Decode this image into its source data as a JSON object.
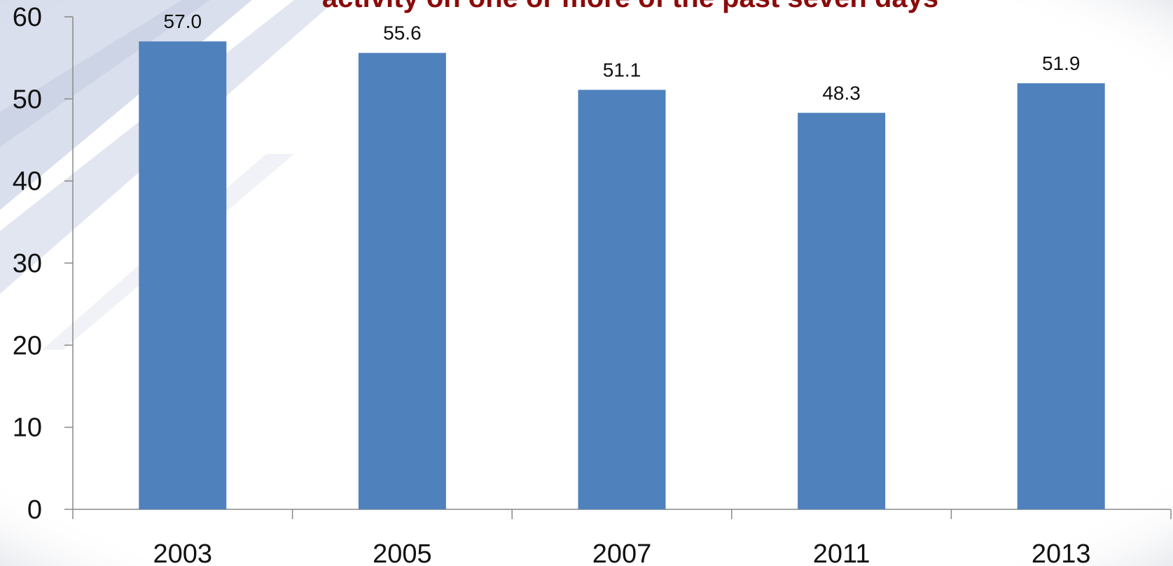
{
  "chart_data": {
    "type": "bar",
    "title": "activity on one or more of the past seven days",
    "categories": [
      "2003",
      "2005",
      "2007",
      "2011",
      "2013"
    ],
    "values": [
      57.0,
      55.6,
      51.1,
      48.3,
      51.9
    ],
    "data_labels": [
      "57.0",
      "55.6",
      "51.1",
      "48.3",
      "51.9"
    ],
    "y_ticks": [
      "0",
      "10",
      "20",
      "30",
      "40",
      "50",
      "60"
    ],
    "ylim": [
      0,
      60
    ],
    "grid": false,
    "legend": "none",
    "colors": {
      "bar": "#4f81bd",
      "title": "#8b0a0a",
      "axis": "#888888"
    }
  }
}
